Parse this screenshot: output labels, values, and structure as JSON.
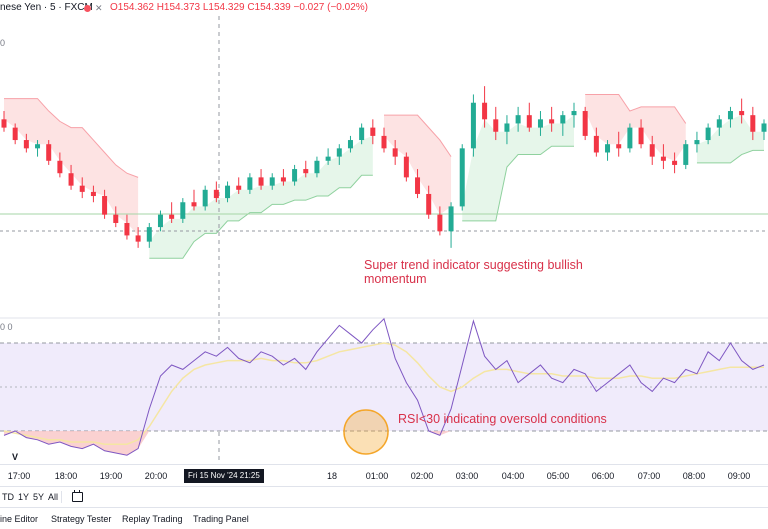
{
  "header": {
    "symbol": "nese Yen · 5 · FXCM",
    "close_icon": "x-icon",
    "ohlc": "O154.362 H154.373 L154.329 C154.339 −0.027 (−0.02%)",
    "sub_value": "0",
    "rsi_value": "0 0",
    "volume_label": "V"
  },
  "annotations": {
    "supertrend_line1": "Super trend indicator suggesting bullish",
    "supertrend_line2": "momentum",
    "rsi": "RSI<30 indicating oversold conditions"
  },
  "xaxis": {
    "ticks": [
      "17:00",
      "18:00",
      "19:00",
      "20:00",
      "18",
      "01:00",
      "02:00",
      "03:00",
      "04:00",
      "05:00",
      "06:00",
      "07:00",
      "08:00",
      "09:00"
    ],
    "crosshair": "Fri 15 Nov '24   21:25"
  },
  "ranges": [
    "TD",
    "1Y",
    "5Y",
    "All"
  ],
  "ranges_icon": "calendar-icon",
  "tabs": [
    "ine Editor",
    "Strategy Tester",
    "Replay Trading",
    "Trading Panel"
  ],
  "colors": {
    "up": "#22ab94",
    "down": "#f23645",
    "supertrend_down_fill": "#fde3e3",
    "supertrend_up_fill": "#e6f6ea",
    "rsi_band": "#f0ebfb",
    "rsi_line": "#7e57c2",
    "rsi_ma": "#f5e6a3",
    "highlight_circle": "#f4a62a"
  },
  "chart_data": [
    {
      "type": "candlestick",
      "title": "",
      "series": [
        {
          "name": "",
          "values": [
            [
              154.62,
              154.66,
              154.56,
              154.58
            ],
            [
              154.58,
              154.6,
              154.5,
              154.52
            ],
            [
              154.52,
              154.55,
              154.46,
              154.48
            ],
            [
              154.48,
              154.52,
              154.44,
              154.5
            ],
            [
              154.5,
              154.52,
              154.4,
              154.42
            ],
            [
              154.42,
              154.46,
              154.34,
              154.36
            ],
            [
              154.36,
              154.4,
              154.28,
              154.3
            ],
            [
              154.3,
              154.34,
              154.24,
              154.27
            ],
            [
              154.27,
              154.3,
              154.22,
              154.25
            ],
            [
              154.25,
              154.28,
              154.14,
              154.16
            ],
            [
              154.16,
              154.2,
              154.1,
              154.12
            ],
            [
              154.12,
              154.16,
              154.04,
              154.06
            ],
            [
              154.06,
              154.1,
              154.0,
              154.03
            ],
            [
              154.03,
              154.12,
              154.0,
              154.1
            ],
            [
              154.1,
              154.18,
              154.08,
              154.16
            ],
            [
              154.16,
              154.22,
              154.12,
              154.14
            ],
            [
              154.14,
              154.24,
              154.12,
              154.22
            ],
            [
              154.22,
              154.28,
              154.18,
              154.2
            ],
            [
              154.2,
              154.3,
              154.18,
              154.28
            ],
            [
              154.28,
              154.32,
              154.22,
              154.24
            ],
            [
              154.24,
              154.32,
              154.22,
              154.3
            ],
            [
              154.3,
              154.34,
              154.26,
              154.28
            ],
            [
              154.28,
              154.36,
              154.26,
              154.34
            ],
            [
              154.34,
              154.38,
              154.28,
              154.3
            ],
            [
              154.3,
              154.36,
              154.28,
              154.34
            ],
            [
              154.34,
              154.38,
              154.3,
              154.32
            ],
            [
              154.32,
              154.4,
              154.3,
              154.38
            ],
            [
              154.38,
              154.42,
              154.34,
              154.36
            ],
            [
              154.36,
              154.44,
              154.34,
              154.42
            ],
            [
              154.42,
              154.48,
              154.4,
              154.44
            ],
            [
              154.44,
              154.5,
              154.4,
              154.48
            ],
            [
              154.48,
              154.54,
              154.46,
              154.52
            ],
            [
              154.52,
              154.6,
              154.5,
              154.58
            ],
            [
              154.58,
              154.62,
              154.5,
              154.54
            ],
            [
              154.54,
              154.58,
              154.46,
              154.48
            ],
            [
              154.48,
              154.52,
              154.4,
              154.44
            ],
            [
              154.44,
              154.46,
              154.32,
              154.34
            ],
            [
              154.34,
              154.38,
              154.24,
              154.26
            ],
            [
              154.26,
              154.3,
              154.14,
              154.16
            ],
            [
              154.16,
              154.2,
              154.06,
              154.08
            ],
            [
              154.08,
              154.22,
              154.0,
              154.2
            ],
            [
              154.2,
              154.5,
              154.18,
              154.48
            ],
            [
              154.48,
              154.74,
              154.44,
              154.7
            ],
            [
              154.7,
              154.78,
              154.58,
              154.62
            ],
            [
              154.62,
              154.68,
              154.52,
              154.56
            ],
            [
              154.56,
              154.64,
              154.5,
              154.6
            ],
            [
              154.6,
              154.68,
              154.56,
              154.64
            ],
            [
              154.64,
              154.7,
              154.56,
              154.58
            ],
            [
              154.58,
              154.66,
              154.54,
              154.62
            ],
            [
              154.62,
              154.68,
              154.56,
              154.6
            ],
            [
              154.6,
              154.66,
              154.54,
              154.64
            ],
            [
              154.64,
              154.7,
              154.58,
              154.66
            ],
            [
              154.66,
              154.68,
              154.52,
              154.54
            ],
            [
              154.54,
              154.58,
              154.44,
              154.46
            ],
            [
              154.46,
              154.52,
              154.42,
              154.5
            ],
            [
              154.5,
              154.56,
              154.44,
              154.48
            ],
            [
              154.48,
              154.6,
              154.46,
              154.58
            ],
            [
              154.58,
              154.62,
              154.48,
              154.5
            ],
            [
              154.5,
              154.54,
              154.4,
              154.44
            ],
            [
              154.44,
              154.5,
              154.38,
              154.42
            ],
            [
              154.42,
              154.46,
              154.36,
              154.4
            ],
            [
              154.4,
              154.52,
              154.38,
              154.5
            ],
            [
              154.5,
              154.56,
              154.46,
              154.52
            ],
            [
              154.52,
              154.6,
              154.5,
              154.58
            ],
            [
              154.58,
              154.64,
              154.54,
              154.62
            ],
            [
              154.62,
              154.68,
              154.58,
              154.66
            ],
            [
              154.66,
              154.72,
              154.6,
              154.64
            ],
            [
              154.64,
              154.68,
              154.52,
              154.56
            ],
            [
              154.56,
              154.62,
              154.52,
              154.6
            ]
          ]
        }
      ]
    },
    {
      "type": "line",
      "title": "",
      "series": [
        {
          "name": "",
          "values": [
            28,
            30,
            27,
            26,
            24,
            25,
            23,
            22,
            24,
            21,
            20,
            19,
            22,
            40,
            55,
            60,
            58,
            62,
            66,
            64,
            68,
            63,
            61,
            66,
            64,
            60,
            63,
            58,
            66,
            72,
            78,
            74,
            70,
            76,
            81,
            63,
            52,
            44,
            30,
            28,
            40,
            60,
            80,
            64,
            58,
            62,
            52,
            56,
            60,
            54,
            52,
            58,
            56,
            48,
            52,
            56,
            60,
            52,
            48,
            54,
            52,
            58,
            56,
            66,
            62,
            70,
            62,
            58,
            60
          ]
        },
        {
          "name": "",
          "values": [
            30,
            29,
            28,
            27,
            26,
            26,
            25,
            25,
            25,
            24,
            24,
            24,
            26,
            32,
            40,
            48,
            54,
            58,
            60,
            61,
            62,
            62,
            62,
            63,
            62,
            62,
            61,
            61,
            62,
            64,
            66,
            67,
            68,
            69,
            70,
            69,
            66,
            61,
            55,
            50,
            48,
            50,
            54,
            57,
            58,
            58,
            57,
            56,
            56,
            56,
            55,
            55,
            55,
            54,
            54,
            54,
            55,
            55,
            54,
            54,
            54,
            55,
            56,
            57,
            58,
            59,
            59,
            59,
            59
          ]
        }
      ],
      "ylim": [
        0,
        100
      ]
    }
  ]
}
